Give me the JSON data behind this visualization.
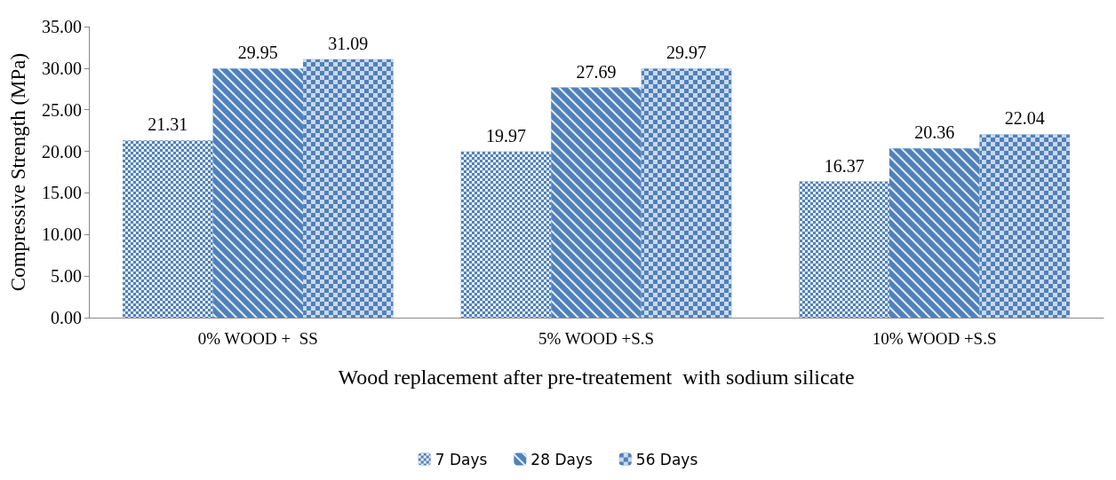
{
  "chart_data": {
    "type": "bar",
    "xlabel": "Wood replacement after pre-treatement  with sodium silicate",
    "ylabel": "Compressive Strength (MPa)",
    "categories": [
      "0% WOOD +  SS",
      "5% WOOD +S.S",
      "10% WOOD +S.S"
    ],
    "series": [
      {
        "name": "7 Days",
        "color": "#4f81bd",
        "values": [
          21.31,
          19.97,
          16.37
        ]
      },
      {
        "name": "28 Days",
        "color": "#4f81bd",
        "values": [
          29.95,
          27.69,
          20.36
        ]
      },
      {
        "name": "56 Days",
        "color": "#4f81bd",
        "values": [
          31.09,
          29.97,
          22.04
        ]
      }
    ],
    "ylim": [
      0,
      35
    ],
    "yticks": [
      {
        "value": 0,
        "label": "0.00"
      },
      {
        "value": 5,
        "label": "5.00"
      },
      {
        "value": 10,
        "label": "10.00"
      },
      {
        "value": 15,
        "label": "15.00"
      },
      {
        "value": 20,
        "label": "20.00"
      },
      {
        "value": 25,
        "label": "25.00"
      },
      {
        "value": 30,
        "label": "30.00"
      },
      {
        "value": 35,
        "label": "35.00"
      }
    ],
    "data_labels": true,
    "grid": false,
    "legend": "bottom"
  }
}
